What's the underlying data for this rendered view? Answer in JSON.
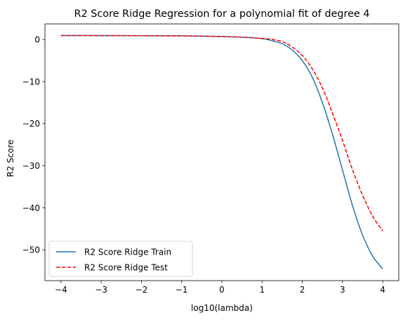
{
  "chart_data": {
    "type": "line",
    "title": "R2 Score Ridge Regression for a polynomial fit of degree 4",
    "xlabel": "log10(lambda)",
    "ylabel": "R2 Score",
    "xlim": [
      -4.4,
      4.4
    ],
    "ylim": [
      -57.3,
      3.7
    ],
    "xticks": [
      -4,
      -3,
      -2,
      -1,
      0,
      1,
      2,
      3,
      4
    ],
    "yticks": [
      0,
      -10,
      -20,
      -30,
      -40,
      -50
    ],
    "grid": false,
    "legend_position": "lower-left",
    "x": [
      -4.0,
      -3.0,
      -2.0,
      -1.0,
      0.0,
      0.5,
      1.0,
      1.25,
      1.5,
      1.75,
      2.0,
      2.25,
      2.5,
      2.75,
      3.0,
      3.25,
      3.5,
      3.75,
      4.0
    ],
    "series": [
      {
        "name": "R2 Score Ridge Train",
        "color": "#1f77b4",
        "style": "solid",
        "values": [
          0.95,
          0.93,
          0.91,
          0.85,
          0.7,
          0.55,
          0.2,
          -0.3,
          -1.0,
          -2.5,
          -5.0,
          -9.0,
          -15.0,
          -22.5,
          -31.0,
          -39.5,
          -46.5,
          -51.5,
          -54.5
        ]
      },
      {
        "name": "R2 Score Ridge Test",
        "color": "#ff0000",
        "style": "dashed",
        "values": [
          0.95,
          0.93,
          0.91,
          0.85,
          0.7,
          0.55,
          0.25,
          0.0,
          -0.5,
          -1.8,
          -3.8,
          -7.0,
          -11.5,
          -17.5,
          -24.0,
          -31.0,
          -37.0,
          -42.0,
          -45.5
        ]
      }
    ]
  }
}
